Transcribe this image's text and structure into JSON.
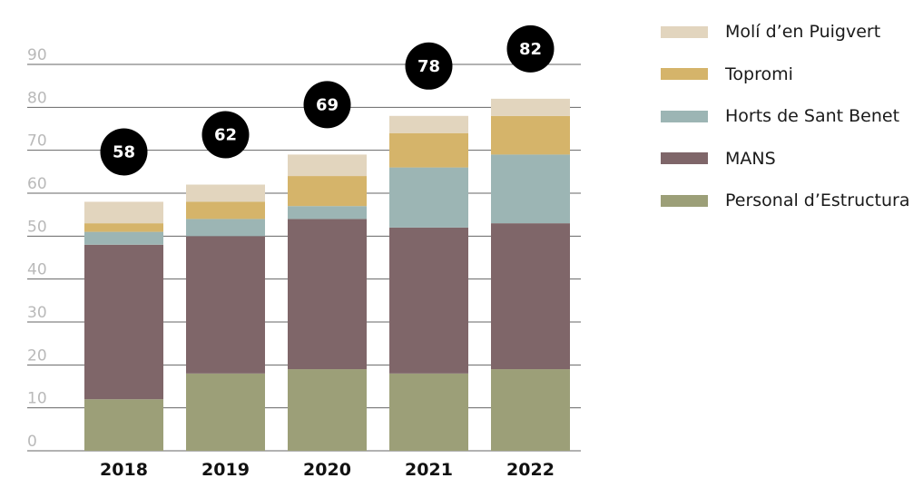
{
  "chart_data": {
    "type": "bar",
    "stacked": true,
    "categories": [
      "2018",
      "2019",
      "2020",
      "2021",
      "2022"
    ],
    "series": [
      {
        "name": "Personal d’Estructura",
        "color": "#9c9f78",
        "values": [
          12,
          18,
          19,
          18,
          19
        ]
      },
      {
        "name": "MANS",
        "color": "#7f6669",
        "values": [
          36,
          32,
          35,
          34,
          34
        ]
      },
      {
        "name": "Horts de Sant Benet",
        "color": "#9cb5b4",
        "values": [
          3,
          4,
          3,
          14,
          16
        ]
      },
      {
        "name": "Topromi",
        "color": "#d5b46a",
        "values": [
          2,
          4,
          7,
          8,
          9
        ]
      },
      {
        "name": "Molí d’en Puigvert",
        "color": "#e2d5be",
        "values": [
          5,
          4,
          5,
          4,
          4
        ]
      }
    ],
    "totals": [
      "58",
      "62",
      "69",
      "78",
      "82"
    ],
    "yticks": [
      "0",
      "10",
      "20",
      "30",
      "40",
      "50",
      "60",
      "70",
      "80",
      "90"
    ],
    "ylim": [
      0,
      90
    ],
    "grid": true,
    "legend_position": "right",
    "title": "",
    "xlabel": "",
    "ylabel": ""
  },
  "legend": [
    {
      "label": "Molí d’en Puigvert",
      "color": "#e2d5be"
    },
    {
      "label": "Topromi",
      "color": "#d5b46a"
    },
    {
      "label": "Horts de Sant Benet",
      "color": "#9cb5b4"
    },
    {
      "label": "MANS",
      "color": "#7f6669"
    },
    {
      "label": "Personal d’Estructura",
      "color": "#9c9f78"
    }
  ]
}
